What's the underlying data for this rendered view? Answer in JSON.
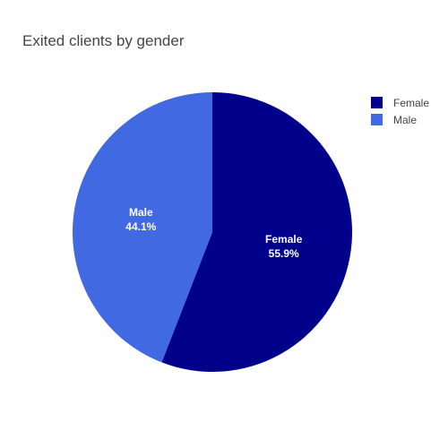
{
  "chart_data": {
    "type": "pie",
    "title": "Exited clients by gender",
    "labels": [
      "Female",
      "Male"
    ],
    "values": [
      55.9,
      44.1
    ],
    "value_labels": [
      "55.9%",
      "44.1%"
    ],
    "colors": [
      "#00008B",
      "#4169E1"
    ],
    "legend_position": "top-right",
    "direction": "clockwise",
    "start": "12 o'clock"
  }
}
